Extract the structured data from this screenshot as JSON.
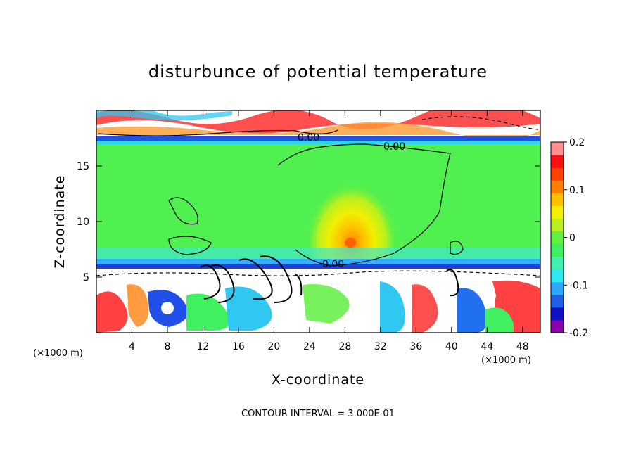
{
  "chart_data": {
    "type": "heatmap",
    "title": "disturbunce of potential temperature",
    "xlabel": "X-coordinate",
    "ylabel": "Z-coordinate",
    "x_unit": "(×1000 m)",
    "x_ticks": [
      4,
      8,
      12,
      16,
      20,
      24,
      28,
      32,
      36,
      40,
      44,
      48
    ],
    "y_ticks": [
      5,
      10,
      15
    ],
    "xlim": [
      0,
      50
    ],
    "ylim": [
      0,
      20
    ],
    "colorbar": {
      "min": -0.2,
      "max": 0.2,
      "ticks": [
        "0.2",
        "0.1",
        "0",
        "-0.1",
        "-0.2"
      ],
      "colors": [
        "#8800aa",
        "#1010c8",
        "#2060e8",
        "#30a8ff",
        "#30e8f0",
        "#40f0b0",
        "#40f060",
        "#60f040",
        "#b8f020",
        "#f0f000",
        "#ffc000",
        "#ff8000",
        "#ff4000",
        "#ff1010",
        "#ff9090"
      ]
    },
    "contour_labels": [
      "0.00",
      "0.00",
      "0.00"
    ],
    "footer": "CONTOUR INTERVAL = 3.000E-01",
    "grid": false
  }
}
